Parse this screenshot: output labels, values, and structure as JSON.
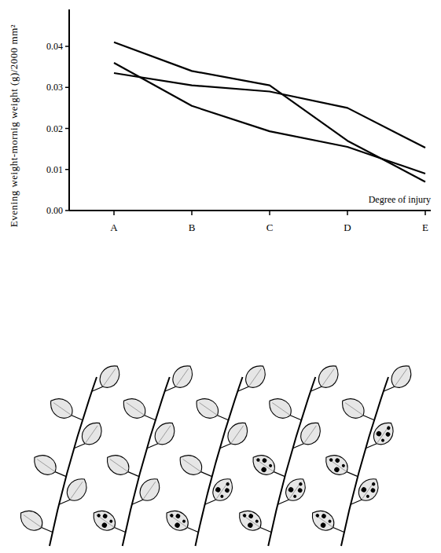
{
  "chart_data": {
    "type": "line",
    "categories": [
      "A",
      "B",
      "C",
      "D",
      "E"
    ],
    "series": [
      {
        "color": "#000000",
        "values": [
          0.041,
          0.034,
          0.0305,
          0.017,
          0.007
        ]
      },
      {
        "color": "#000000",
        "values": [
          0.0335,
          0.0305,
          0.029,
          0.025,
          0.0153
        ]
      },
      {
        "color": "#000000",
        "values": [
          0.036,
          0.0255,
          0.0193,
          0.0155,
          0.009
        ]
      }
    ],
    "ylim": [
      0,
      0.049
    ],
    "yticks": [
      {
        "value": 0,
        "label": "0.00"
      },
      0.01,
      0.02,
      0.03,
      0.04
    ],
    "y_label": "Evening weight-mornig weight (g)/2000 mm²",
    "x_label": "Degree of injury",
    "grid": false
  }
}
